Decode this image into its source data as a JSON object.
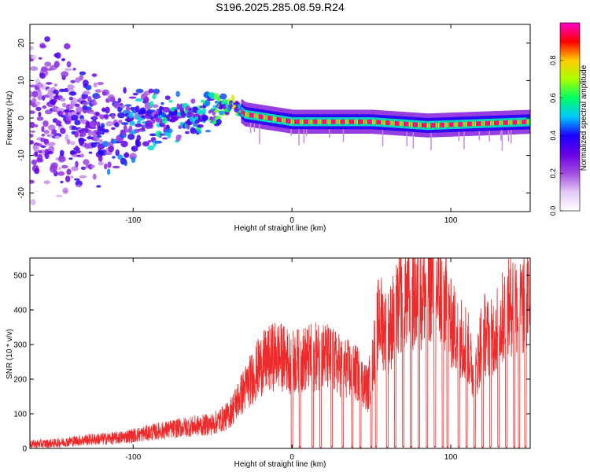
{
  "figure": {
    "title": "S196.2025.285.08.59.R24"
  },
  "colors": {
    "snr_line": "#ee2a2a",
    "axis": "#000000",
    "background": "#ffffff",
    "colormap": [
      "#ffffff",
      "#e3c9f5",
      "#a14de0",
      "#6a00e6",
      "#1a00ff",
      "#00c8ff",
      "#00ff66",
      "#aaff00",
      "#ffcc00",
      "#ff0000",
      "#ff00cc"
    ]
  },
  "chart_data": [
    {
      "type": "heatmap",
      "title": "S196.2025.285.08.59.R24",
      "xlabel": "Height of straight line (km)",
      "ylabel": "Frequency (Hz)",
      "xlim": [
        -165,
        150
      ],
      "ylim": [
        -25,
        25
      ],
      "xticks": [
        -100,
        0,
        100
      ],
      "yticks": [
        -20,
        -10,
        0,
        10,
        20
      ],
      "colorbar": {
        "label": "Normalized spectral amplitude",
        "range": [
          0,
          1
        ],
        "ticks": [
          "0.0",
          "0.2",
          "0.4",
          "0.6",
          "0.8"
        ]
      },
      "description_points": [
        {
          "x": -160,
          "freq_center": 0,
          "spread": 22,
          "intensity": 0.25
        },
        {
          "x": -120,
          "freq_center": -4,
          "spread": 12,
          "intensity": 0.35
        },
        {
          "x": -80,
          "freq_center": 0,
          "spread": 6,
          "intensity": 0.45
        },
        {
          "x": -50,
          "freq_center": 2,
          "spread": 5,
          "intensity": 0.5
        },
        {
          "x": -38,
          "freq_center": 4,
          "spread": 2,
          "intensity": 0.6
        },
        {
          "x": -30,
          "freq_center": 1,
          "spread": 1,
          "intensity": 0.7
        },
        {
          "x": 0,
          "freq_center": -1,
          "spread": 1,
          "intensity": 0.9
        },
        {
          "x": 50,
          "freq_center": -1,
          "spread": 1,
          "intensity": 0.9
        },
        {
          "x": 85,
          "freq_center": -2,
          "spread": 1,
          "intensity": 0.9
        },
        {
          "x": 150,
          "freq_center": -1,
          "spread": 1,
          "intensity": 0.9
        }
      ]
    },
    {
      "type": "line",
      "xlabel": "Height of straight line (km)",
      "ylabel": "SNR (10 * v/v)",
      "xlim": [
        -165,
        150
      ],
      "ylim": [
        0,
        550
      ],
      "xticks": [
        -100,
        0,
        100
      ],
      "yticks": [
        0,
        100,
        200,
        300,
        400,
        500
      ],
      "series": [
        {
          "name": "SNR",
          "x": [
            -165,
            -150,
            -130,
            -110,
            -90,
            -70,
            -50,
            -40,
            -30,
            -20,
            -10,
            0,
            10,
            20,
            30,
            40,
            48,
            55,
            60,
            70,
            80,
            88,
            95,
            100,
            105,
            110,
            115,
            120,
            125,
            130,
            135,
            140,
            145,
            150
          ],
          "values": [
            12,
            15,
            25,
            30,
            45,
            60,
            70,
            95,
            170,
            240,
            270,
            250,
            260,
            270,
            240,
            220,
            170,
            380,
            330,
            440,
            440,
            480,
            440,
            360,
            330,
            310,
            190,
            340,
            310,
            360,
            390,
            430,
            410,
            430
          ]
        }
      ],
      "dropouts_x": [
        0,
        5,
        13,
        18,
        25,
        32,
        38,
        43,
        50,
        53,
        60,
        65,
        70,
        75,
        80,
        85,
        90,
        95,
        98,
        105,
        110,
        115,
        120,
        125,
        130,
        135,
        140,
        143,
        147
      ]
    }
  ]
}
